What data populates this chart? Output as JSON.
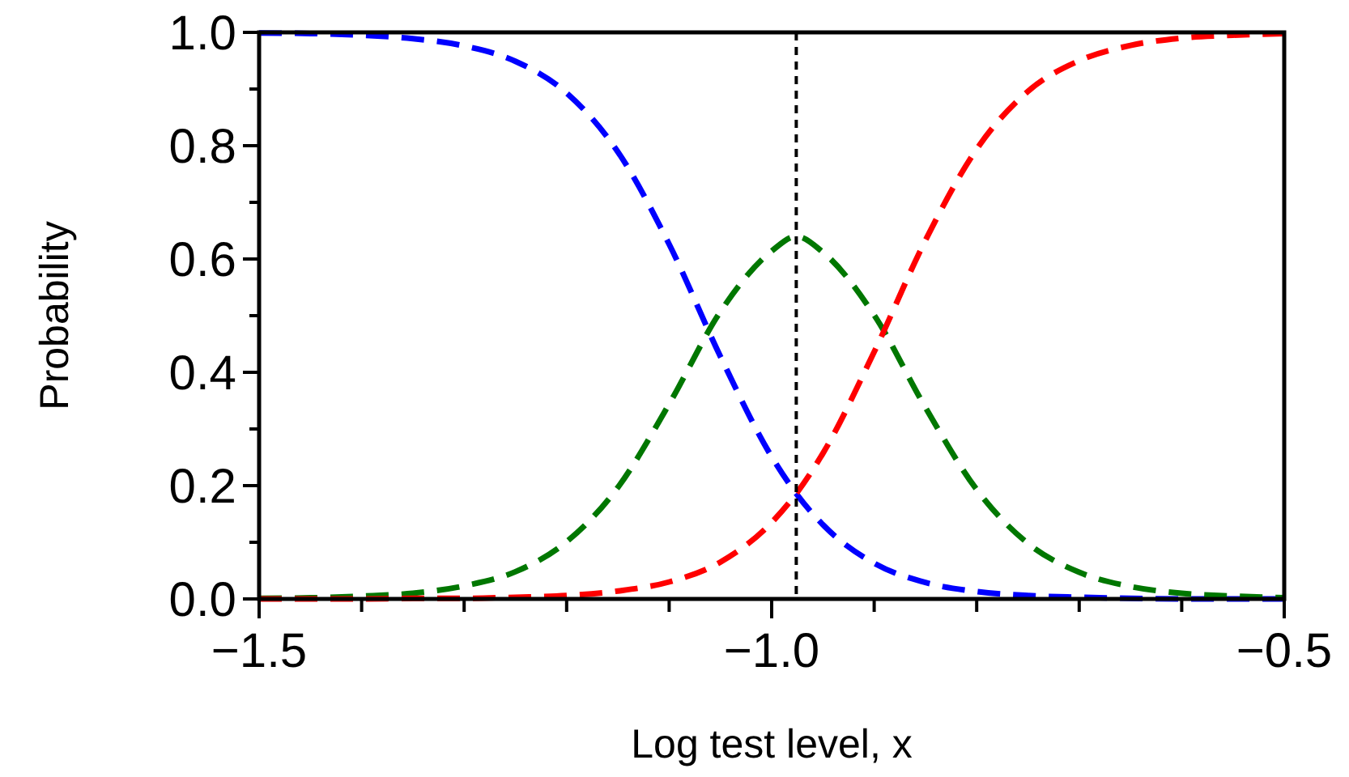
{
  "chart_data": {
    "type": "line",
    "xlabel": "Log test level, x",
    "ylabel": "Probability",
    "x": [
      -1.5,
      -1.45,
      -1.4,
      -1.35,
      -1.3,
      -1.25,
      -1.2,
      -1.15,
      -1.1,
      -1.05,
      -1.0,
      -0.976,
      -0.95,
      -0.9,
      -0.85,
      -0.8,
      -0.75,
      -0.7,
      -0.65,
      -0.6,
      -0.55,
      -0.5
    ],
    "series": [
      {
        "color": "#0000ff",
        "values": [
          0.999,
          0.998,
          0.995,
          0.989,
          0.976,
          0.949,
          0.893,
          0.789,
          0.626,
          0.428,
          0.251,
          0.186,
          0.131,
          0.063,
          0.029,
          0.013,
          0.006,
          0.003,
          0.001,
          0.0,
          0.0,
          0.0
        ]
      },
      {
        "color": "#007700",
        "values": [
          0.001,
          0.002,
          0.005,
          0.01,
          0.023,
          0.048,
          0.101,
          0.197,
          0.344,
          0.507,
          0.614,
          0.64,
          0.612,
          0.501,
          0.338,
          0.193,
          0.098,
          0.047,
          0.022,
          0.01,
          0.005,
          0.002
        ]
      },
      {
        "color": "#ff0000",
        "values": [
          0.0,
          0.0,
          0.0,
          0.001,
          0.001,
          0.003,
          0.006,
          0.014,
          0.03,
          0.065,
          0.135,
          0.186,
          0.257,
          0.436,
          0.633,
          0.794,
          0.896,
          0.95,
          0.977,
          0.99,
          0.995,
          0.998
        ]
      }
    ],
    "xlim": [
      -1.5,
      -0.5
    ],
    "ylim": [
      0,
      1
    ],
    "xticks": [
      {
        "value": -1.5,
        "label": "−1.5"
      },
      {
        "value": -1.4,
        "label": null
      },
      {
        "value": -1.3,
        "label": null
      },
      {
        "value": -1.2,
        "label": null
      },
      {
        "value": -1.1,
        "label": null
      },
      {
        "value": -1.0,
        "label": "−1.0"
      },
      {
        "value": -0.9,
        "label": null
      },
      {
        "value": -0.8,
        "label": null
      },
      {
        "value": -0.7,
        "label": null
      },
      {
        "value": -0.6,
        "label": null
      },
      {
        "value": -0.5,
        "label": "−0.5"
      }
    ],
    "yticks": [
      {
        "value": 0,
        "label": "0.0"
      },
      {
        "value": 0.1,
        "label": null
      },
      {
        "value": 0.2,
        "label": "0.2"
      },
      {
        "value": 0.3,
        "label": null
      },
      {
        "value": 0.4,
        "label": "0.4"
      },
      {
        "value": 0.5,
        "label": null
      },
      {
        "value": 0.6,
        "label": "0.6"
      },
      {
        "value": 0.7,
        "label": null
      },
      {
        "value": 0.8,
        "label": "0.8"
      },
      {
        "value": 0.9,
        "label": null
      },
      {
        "value": 1,
        "label": "1.0"
      }
    ],
    "ref_lines": [
      {
        "axis": "x",
        "value": -0.976,
        "color": "#000000",
        "line_style": "dashed"
      }
    ],
    "grid": false,
    "marker": "none",
    "line_style": "dashed"
  }
}
